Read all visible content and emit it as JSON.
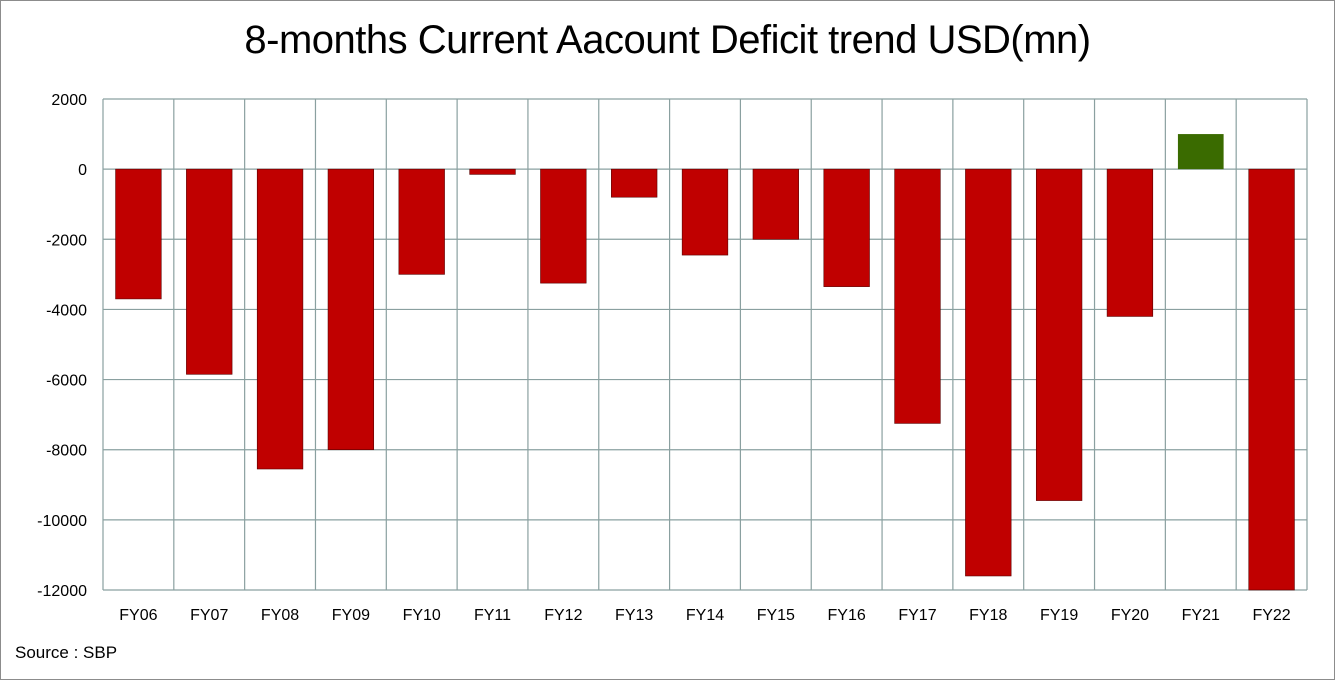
{
  "chart_data": {
    "type": "bar",
    "title": "8-months Current Aacount Deficit trend USD(mn)",
    "source": "Source : SBP",
    "categories": [
      "FY06",
      "FY07",
      "FY08",
      "FY09",
      "FY10",
      "FY11",
      "FY12",
      "FY13",
      "FY14",
      "FY15",
      "FY16",
      "FY17",
      "FY18",
      "FY19",
      "FY20",
      "FY21",
      "FY22"
    ],
    "values": [
      -3700,
      -5850,
      -8550,
      -8000,
      -3000,
      -150,
      -3250,
      -800,
      -2450,
      -2000,
      -3350,
      -7250,
      -11600,
      -9450,
      -4200,
      1000,
      -12000
    ],
    "ylim": [
      -12000,
      2000
    ],
    "yticks": [
      "2000",
      "0",
      "-2000",
      "-4000",
      "-6000",
      "-8000",
      "-10000",
      "-12000"
    ],
    "grid": true,
    "colors": {
      "negative": "#c00000",
      "positive": "#3a6b00",
      "grid": "#8aa0a0"
    }
  }
}
